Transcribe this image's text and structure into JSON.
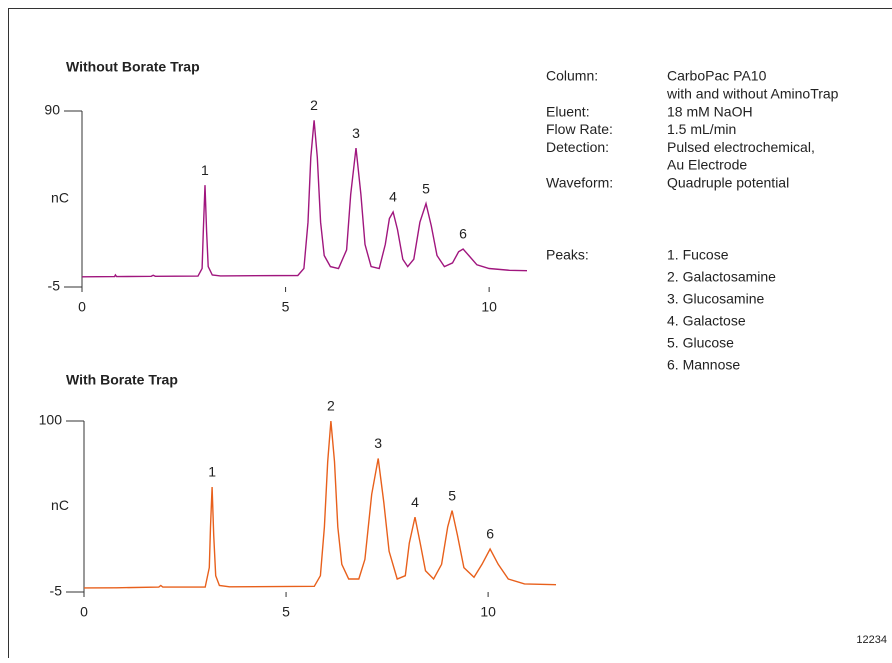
{
  "chart_data": [
    {
      "type": "line",
      "title": "Without Borate Trap",
      "ylabel": "nC",
      "color": "#a0167e",
      "xlim": [
        0,
        10.93
      ],
      "ylim": [
        -5,
        90
      ],
      "xticks": [
        0,
        5,
        10
      ],
      "yticks": [
        -5,
        90
      ],
      "x": [
        0,
        0.8,
        0.82,
        0.85,
        1.7,
        1.75,
        1.8,
        2.85,
        2.95,
        2.98,
        3.02,
        3.06,
        3.1,
        3.2,
        3.4,
        5.3,
        5.45,
        5.55,
        5.62,
        5.7,
        5.78,
        5.86,
        5.95,
        6.1,
        6.3,
        6.5,
        6.6,
        6.73,
        6.85,
        6.95,
        7.1,
        7.3,
        7.45,
        7.55,
        7.64,
        7.75,
        7.88,
        8.0,
        8.15,
        8.3,
        8.45,
        8.58,
        8.72,
        8.9,
        9.1,
        9.25,
        9.36,
        9.5,
        9.7,
        10.0,
        10.5,
        10.93
      ],
      "values": [
        0.5,
        0.6,
        1.5,
        0.6,
        0.8,
        1.3,
        0.8,
        0.9,
        5,
        25,
        50,
        25,
        6,
        1.5,
        1.0,
        1.2,
        5,
        30,
        65,
        85,
        65,
        30,
        12,
        6,
        5,
        15,
        45,
        70,
        45,
        18,
        6,
        5,
        18,
        32,
        35.5,
        26,
        10,
        6,
        10,
        30,
        40,
        28,
        12,
        6,
        8,
        14,
        15.5,
        12,
        7,
        5,
        4,
        3.8
      ],
      "annotations": [
        {
          "text": "1",
          "x": 3.02,
          "y": 50
        },
        {
          "text": "2",
          "x": 5.7,
          "y": 85
        },
        {
          "text": "3",
          "x": 6.73,
          "y": 70
        },
        {
          "text": "4",
          "x": 7.64,
          "y": 35.5
        },
        {
          "text": "5",
          "x": 8.45,
          "y": 40
        },
        {
          "text": "6",
          "x": 9.36,
          "y": 15.5
        }
      ]
    },
    {
      "type": "line",
      "title": "With Borate Trap",
      "ylabel": "nC",
      "color": "#e8601c",
      "xlim": [
        0,
        11.68
      ],
      "ylim": [
        -5,
        100
      ],
      "xticks": [
        0,
        5,
        10
      ],
      "yticks": [
        -5,
        100
      ],
      "x": [
        0,
        0.8,
        1.85,
        1.9,
        1.95,
        3.0,
        3.1,
        3.13,
        3.17,
        3.21,
        3.26,
        3.35,
        3.6,
        5.7,
        5.85,
        5.95,
        6.03,
        6.11,
        6.2,
        6.28,
        6.38,
        6.55,
        6.8,
        6.95,
        7.12,
        7.28,
        7.42,
        7.55,
        7.75,
        7.95,
        8.05,
        8.19,
        8.32,
        8.45,
        8.65,
        8.85,
        9.0,
        9.11,
        9.24,
        9.4,
        9.65,
        9.85,
        10.05,
        10.25,
        10.5,
        10.9,
        11.68
      ],
      "values": [
        -2.5,
        -2.4,
        -2,
        -1,
        -2,
        -2,
        10,
        35,
        59.5,
        30,
        5,
        -1,
        -1.8,
        -1.5,
        5,
        35,
        75,
        100,
        75,
        35,
        12,
        3,
        3,
        15,
        55,
        77,
        50,
        20,
        3,
        5,
        25,
        41,
        25,
        8,
        3,
        12,
        35,
        45,
        30,
        10,
        4,
        12,
        21.4,
        12,
        3,
        0,
        -0.5
      ],
      "annotations": [
        {
          "text": "1",
          "x": 3.17,
          "y": 59.5
        },
        {
          "text": "2",
          "x": 6.11,
          "y": 100
        },
        {
          "text": "3",
          "x": 7.28,
          "y": 77
        },
        {
          "text": "4",
          "x": 8.19,
          "y": 41
        },
        {
          "text": "5",
          "x": 9.11,
          "y": 45
        },
        {
          "text": "6",
          "x": 10.05,
          "y": 21.4
        }
      ]
    }
  ],
  "conditions": [
    {
      "label": "Column:",
      "lines": [
        "CarboPac PA10",
        "with and without AminoTrap"
      ]
    },
    {
      "label": "Eluent:",
      "lines": [
        "18 mM NaOH"
      ]
    },
    {
      "label": "Flow Rate:",
      "lines": [
        "1.5 mL/min"
      ]
    },
    {
      "label": "Detection:",
      "lines": [
        "Pulsed electrochemical,",
        "Au Electrode"
      ]
    },
    {
      "label": "Waveform:",
      "lines": [
        "Quadruple potential"
      ]
    }
  ],
  "peaks": {
    "label": "Peaks:",
    "items": [
      "1. Fucose",
      "2. Galactosamine",
      "3. Glucosamine",
      "4. Galactose",
      "5. Glucose",
      "6. Mannose"
    ]
  },
  "figure_number": "12234"
}
